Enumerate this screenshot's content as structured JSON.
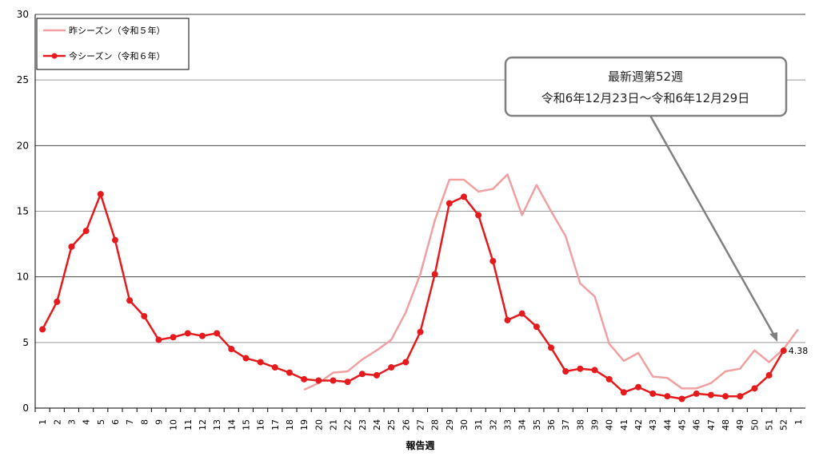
{
  "chart_data": {
    "type": "line",
    "xlabel": "報告週",
    "ylabel": "",
    "ylim": [
      0,
      30
    ],
    "yticks": [
      "0",
      "5",
      "10",
      "15",
      "20",
      "25",
      "30"
    ],
    "categories": [
      "1",
      "2",
      "3",
      "4",
      "5",
      "6",
      "7",
      "8",
      "9",
      "10",
      "11",
      "12",
      "13",
      "14",
      "15",
      "16",
      "17",
      "18",
      "19",
      "20",
      "21",
      "22",
      "23",
      "24",
      "25",
      "26",
      "27",
      "28",
      "29",
      "30",
      "31",
      "32",
      "33",
      "34",
      "35",
      "36",
      "37",
      "38",
      "39",
      "40",
      "41",
      "42",
      "43",
      "44",
      "45",
      "46",
      "47",
      "48",
      "49",
      "50",
      "51",
      "52",
      "1"
    ],
    "grid": true,
    "legend_position": "top-left",
    "series": [
      {
        "name": "昨シーズン（令和５年）",
        "color": "#f0a0a0",
        "markers": false,
        "values": [
          null,
          null,
          null,
          null,
          null,
          null,
          null,
          null,
          null,
          null,
          null,
          null,
          null,
          null,
          null,
          null,
          null,
          null,
          1.4,
          1.9,
          2.7,
          2.8,
          3.7,
          4.4,
          5.2,
          7.3,
          10.2,
          14.3,
          17.4,
          17.4,
          16.5,
          16.7,
          17.8,
          14.7,
          17.0,
          15.0,
          13.1,
          9.5,
          8.5,
          4.9,
          3.6,
          4.2,
          2.4,
          2.3,
          1.5,
          1.5,
          1.9,
          2.8,
          3.0,
          4.4,
          3.5,
          4.5,
          6.0
        ]
      },
      {
        "name": "今シーズン（令和６年）",
        "color": "#e41a1c",
        "markers": true,
        "values": [
          6.0,
          8.1,
          12.3,
          13.5,
          16.3,
          12.8,
          8.2,
          7.0,
          5.2,
          5.4,
          5.7,
          5.5,
          5.7,
          4.5,
          3.8,
          3.5,
          3.1,
          2.7,
          2.2,
          2.1,
          2.1,
          2.0,
          2.6,
          2.5,
          3.1,
          3.5,
          5.8,
          10.2,
          15.6,
          16.1,
          14.7,
          11.2,
          6.7,
          7.2,
          6.2,
          4.6,
          2.8,
          3.0,
          2.9,
          2.2,
          1.2,
          1.6,
          1.1,
          0.9,
          0.7,
          1.1,
          1.0,
          0.9,
          0.9,
          1.5,
          2.5,
          4.38,
          null
        ]
      }
    ],
    "data_label": "4.38",
    "annotation": {
      "line1": "最新週第52週",
      "line2": "令和6年12月23日～令和6年12月29日"
    }
  }
}
